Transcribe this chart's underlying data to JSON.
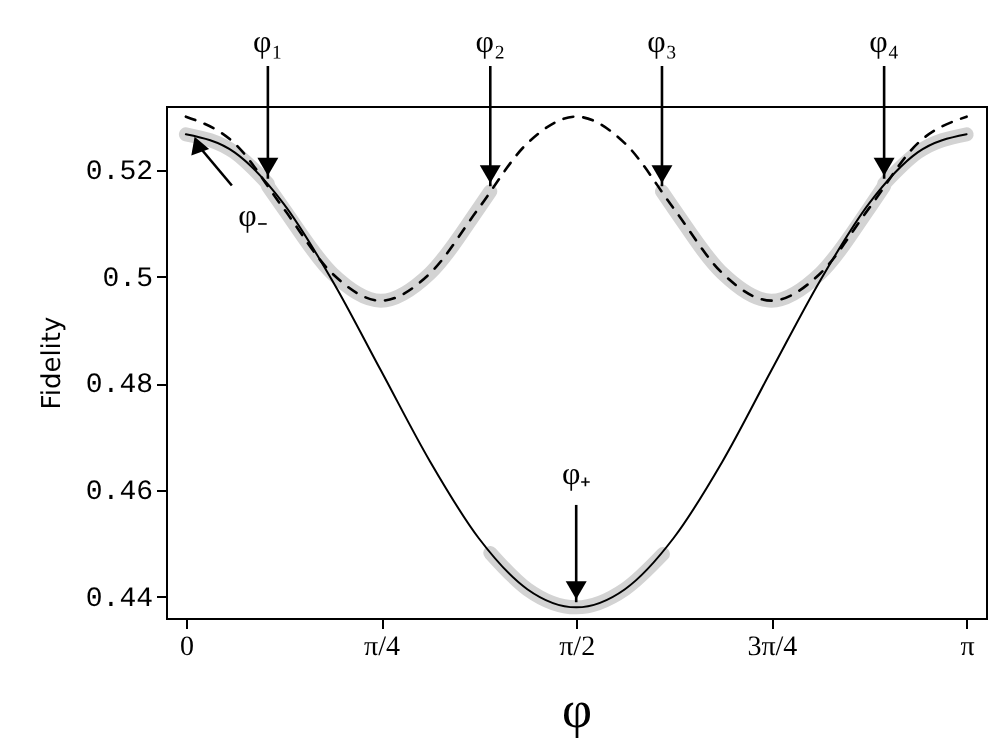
{
  "chart_data": {
    "type": "line",
    "xlabel": "φ",
    "ylabel": "Fidelity",
    "xlim": [
      -0.08,
      3.22
    ],
    "ylim": [
      0.436,
      0.532
    ],
    "xticks": [
      0,
      {
        "value": 0.7854,
        "label": "π/4"
      },
      {
        "value": 1.5708,
        "label": "π/2"
      },
      {
        "value": 2.3562,
        "label": "3π/4"
      },
      {
        "value": 3.1416,
        "label": "π"
      }
    ],
    "yticks": [
      0.44,
      0.46,
      0.48,
      0.5,
      0.52
    ],
    "grid": false,
    "marker": "none",
    "series": [
      {
        "color": "#d3d3d3",
        "line_style": "solid",
        "x": [
          0,
          0.196,
          0.33,
          null,
          0.33,
          0.393,
          0.589,
          0.785,
          0.982,
          1.178,
          1.225,
          null,
          1.225,
          1.374,
          1.571,
          1.767,
          1.92,
          null,
          1.916,
          1.963,
          2.16,
          2.356,
          2.553,
          2.749,
          2.81,
          null,
          2.81,
          2.945,
          3.142
        ],
        "values": [
          0.5267,
          0.5233,
          0.5174,
          null,
          0.517,
          0.5128,
          0.5006,
          0.4955,
          0.5006,
          0.5128,
          0.516,
          null,
          0.4482,
          0.4414,
          0.438,
          0.4414,
          0.448,
          null,
          0.516,
          0.5128,
          0.5006,
          0.4955,
          0.5006,
          0.5128,
          0.517,
          null,
          0.5174,
          0.5233,
          0.5267
        ]
      },
      {
        "color": "#000000",
        "line_style": "solid",
        "x": [
          0,
          0.196,
          0.393,
          0.589,
          0.785,
          0.982,
          1.178,
          1.374,
          1.571,
          1.767,
          1.963,
          2.16,
          2.356,
          2.553,
          2.749,
          2.945,
          3.142
        ],
        "values": [
          0.5267,
          0.5233,
          0.5137,
          0.4993,
          0.4824,
          0.4654,
          0.451,
          0.4414,
          0.438,
          0.4414,
          0.451,
          0.4654,
          0.4824,
          0.4993,
          0.5137,
          0.5233,
          0.5267
        ]
      },
      {
        "color": "#000000",
        "line_style": "dashed",
        "x": [
          0,
          0.196,
          0.393,
          0.589,
          0.785,
          0.982,
          1.178,
          1.374,
          1.571,
          1.767,
          1.963,
          2.16,
          2.356,
          2.553,
          2.749,
          2.945,
          3.142
        ],
        "values": [
          0.53,
          0.525,
          0.5128,
          0.5006,
          0.4955,
          0.5006,
          0.5128,
          0.525,
          0.53,
          0.525,
          0.5128,
          0.5006,
          0.4955,
          0.5006,
          0.5128,
          0.525,
          0.53
        ]
      }
    ],
    "annotations": [
      {
        "text": "φ₁",
        "x": 0.33,
        "y": 0.5174
      },
      {
        "text": "φ₂",
        "x": 1.225,
        "y": 0.516
      },
      {
        "text": "φ₃",
        "x": 1.916,
        "y": 0.516
      },
      {
        "text": "φ₄",
        "x": 2.81,
        "y": 0.5174
      },
      {
        "text": "φ₊",
        "x": 1.5708,
        "y": 0.438
      },
      {
        "text": "φ₋",
        "x": 0.02,
        "y": 0.5267
      }
    ]
  }
}
